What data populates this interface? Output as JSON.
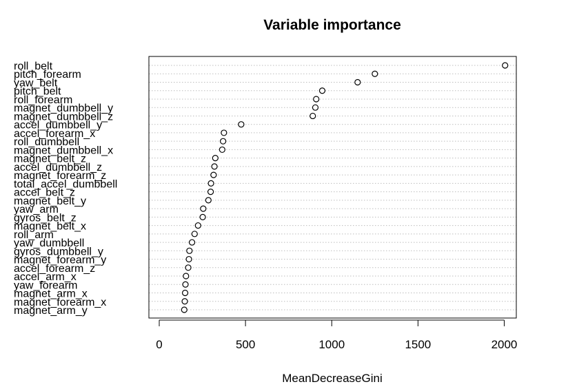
{
  "chart_data": {
    "type": "scatter",
    "title": "Variable importance",
    "xlabel": "MeanDecreaseGini",
    "ylabel": "",
    "xlim": [
      -60,
      2070
    ],
    "xticks": [
      0,
      500,
      1000,
      1500,
      2000
    ],
    "grid": true,
    "point_style": "open-circle",
    "variables": [
      "roll_belt",
      "pitch_forearm",
      "yaw_belt",
      "pitch_belt",
      "roll_forearm",
      "magnet_dumbbell_y",
      "magnet_dumbbell_z",
      "accel_dumbbell_y",
      "accel_forearm_x",
      "roll_dumbbell",
      "magnet_dumbbell_x",
      "magnet_belt_z",
      "accel_dumbbell_z",
      "magnet_forearm_z",
      "total_accel_dumbbell",
      "accel_belt_z",
      "magnet_belt_y",
      "yaw_arm",
      "gyros_belt_z",
      "magnet_belt_x",
      "roll_arm",
      "yaw_dumbbell",
      "gyros_dumbbell_y",
      "magnet_forearm_y",
      "accel_forearm_z",
      "accel_arm_x",
      "yaw_forearm",
      "magnet_arm_x",
      "magnet_forearm_x",
      "magnet_arm_y"
    ],
    "values": [
      2005,
      1250,
      1150,
      945,
      910,
      905,
      890,
      475,
      375,
      370,
      365,
      325,
      320,
      315,
      300,
      298,
      285,
      255,
      252,
      225,
      205,
      190,
      175,
      172,
      168,
      155,
      152,
      150,
      148,
      145
    ]
  }
}
